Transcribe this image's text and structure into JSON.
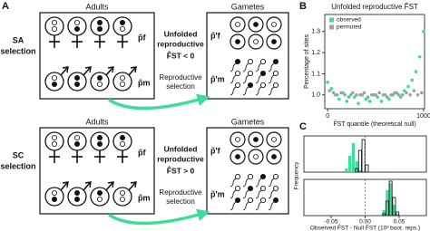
{
  "panel_a": {
    "label": "A",
    "rows": [
      {
        "selection": [
          "SA",
          "selection"
        ],
        "adults": "Adults",
        "gametes": "Gametes",
        "p_f": "p̂f",
        "p_m": "p̂m",
        "p_f_prime": "p̂'f",
        "p_m_prime": "p̂'m",
        "annotation": [
          "Unfolded",
          "reproductive",
          "F̂ST < 0"
        ],
        "arrow_label": [
          "Reproductive",
          "selection"
        ]
      },
      {
        "selection": [
          "SC",
          "selection"
        ],
        "adults": "Adults",
        "gametes": "Gametes",
        "p_f": "p̂f",
        "p_m": "p̂m",
        "p_f_prime": "p̂'f",
        "p_m_prime": "p̂'m",
        "annotation": [
          "Unfolded",
          "reproductive",
          "F̂ST > 0"
        ],
        "arrow_label": [
          "Reproductive",
          "selection"
        ]
      }
    ]
  },
  "chart_data": [
    {
      "type": "scatter",
      "label": "B",
      "title": "Unfolded reproductive F̂ST",
      "ylabel": "Percentage of sites",
      "xlabel": "F̂ST quantile (theoretical null)",
      "xlim": [
        -30,
        1010
      ],
      "xticks": [
        0,
        1000
      ],
      "ylim": [
        0.935,
        1.38
      ],
      "yticks": [
        {
          "value": 1,
          "label": "1.0"
        },
        1.1,
        1.2,
        1.3
      ],
      "legend": "upper left",
      "series": [
        {
          "name": "observed",
          "color": "#3ddc97",
          "x": [
            0,
            40,
            80,
            120,
            160,
            200,
            240,
            280,
            320,
            360,
            400,
            440,
            480,
            520,
            560,
            600,
            640,
            680,
            720,
            760,
            800,
            840,
            880,
            920,
            960,
            1000
          ],
          "values": [
            1.06,
            1.03,
            1.0,
            0.98,
            1.01,
            0.97,
            1.0,
            0.99,
            0.96,
            1.0,
            0.98,
            0.97,
            1.0,
            0.99,
            0.97,
            1.0,
            0.98,
            1.0,
            1.01,
            0.99,
            1.02,
            1.04,
            1.07,
            1.11,
            1.18,
            1.3
          ]
        },
        {
          "name": "permuted",
          "color": "#a0a0a0",
          "x": [
            20,
            60,
            100,
            140,
            180,
            220,
            260,
            300,
            340,
            380,
            420,
            460,
            500,
            540,
            580,
            620,
            660,
            700,
            740,
            780,
            820,
            860,
            900,
            940,
            980
          ],
          "values": [
            1.02,
            1.01,
            1.0,
            1.01,
            1.0,
            0.99,
            1.01,
            1.0,
            1.0,
            1.01,
            0.99,
            1.0,
            1.0,
            1.01,
            1.0,
            0.99,
            1.0,
            1.01,
            1.0,
            1.0,
            1.01,
            1.0,
            1.02,
            1.0,
            1.01
          ]
        }
      ]
    },
    {
      "type": "histogram",
      "label": "C",
      "ylabel": "Frequency",
      "xlabel": "Observed F̂ST - Null F̂ST (10³ boot. reps.)",
      "xlim": [
        -0.09,
        0.09
      ],
      "xticks": [
        -0.05,
        {
          "value": 0,
          "label": "0.00"
        },
        0.05
      ],
      "ylim": [
        0,
        100
      ],
      "reference_line": 0,
      "subplots": [
        {
          "bins": [
            -0.03,
            -0.025,
            -0.02,
            -0.015,
            -0.01,
            -0.005,
            0,
            0.005
          ],
          "series": [
            {
              "color": "#3ddc97",
              "values": [
                10,
                45,
                80,
                30,
                5,
                0,
                0
              ]
            },
            {
              "color": "#222222",
              "values": [
                0,
                0,
                0,
                10,
                60,
                90,
                20
              ]
            }
          ]
        },
        {
          "bins": [
            0.02,
            0.025,
            0.03,
            0.035,
            0.04,
            0.045,
            0.05,
            0.055
          ],
          "series": [
            {
              "color": "#3ddc97",
              "values": [
                0,
                15,
                70,
                90,
                30,
                5,
                0
              ]
            },
            {
              "color": "#222222",
              "values": [
                0,
                5,
                40,
                95,
                50,
                10,
                0
              ]
            }
          ]
        }
      ]
    }
  ]
}
